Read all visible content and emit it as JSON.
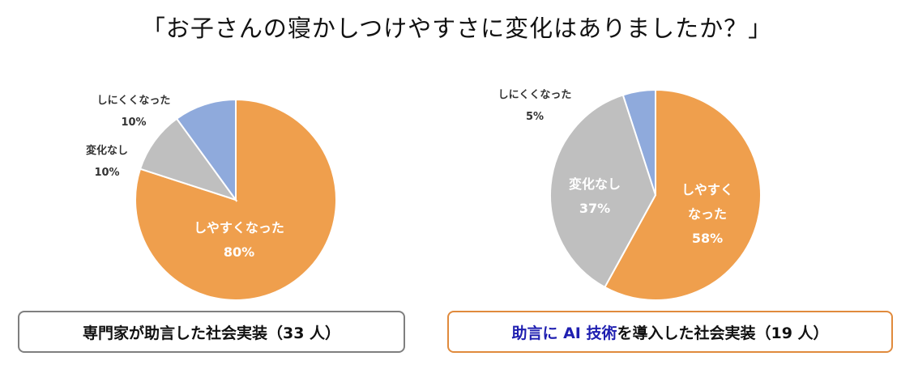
{
  "title": "「お子さんの寝かしつけやすさに変化はありましたか？」",
  "chart_data": [
    {
      "type": "pie",
      "caption": "専門家が助言した社会実装（33 人）",
      "slices": [
        {
          "label": "しやすくなった",
          "percent_label": "80%",
          "value": 80,
          "color": "#ef9f4d"
        },
        {
          "label": "変化なし",
          "percent_label": "10%",
          "value": 10,
          "color": "#bfbfbf"
        },
        {
          "label": "しにくくなった",
          "percent_label": "10%",
          "value": 10,
          "color": "#8faadc"
        }
      ]
    },
    {
      "type": "pie",
      "caption_parts": [
        "助言に AI 技術",
        "を導入した社会実装（19 人）"
      ],
      "slices": [
        {
          "label": "しやすく なった",
          "label_lines": [
            "しやすく",
            "なった"
          ],
          "percent_label": "58%",
          "value": 58,
          "color": "#ef9f4d"
        },
        {
          "label": "変化なし",
          "percent_label": "37%",
          "value": 37,
          "color": "#bfbfbf"
        },
        {
          "label": "しにくくなった",
          "percent_label": "5%",
          "value": 5,
          "color": "#8faadc"
        }
      ]
    }
  ]
}
